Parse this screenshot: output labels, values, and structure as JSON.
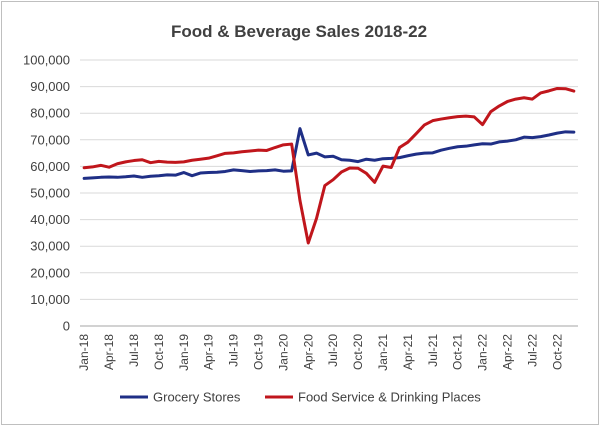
{
  "chart_data": {
    "type": "line",
    "title": "Food & Beverage Sales 2018-22",
    "xlabel": "",
    "ylabel": "",
    "ylim": [
      0,
      100000
    ],
    "yticks": [
      "0",
      "10,000",
      "20,000",
      "30,000",
      "40,000",
      "50,000",
      "60,000",
      "70,000",
      "80,000",
      "90,000",
      "100,000"
    ],
    "grid": true,
    "legend_position": "bottom",
    "x_tick_labels": [
      "Jan-18",
      "Apr-18",
      "Jul-18",
      "Oct-18",
      "Jan-19",
      "Apr-19",
      "Jul-19",
      "Oct-19",
      "Jan-20",
      "Apr-20",
      "Jul-20",
      "Oct-20",
      "Jan-21",
      "Apr-21",
      "Jul-21",
      "Oct-21",
      "Jan-22",
      "Apr-22",
      "Jul-22",
      "Oct-22"
    ],
    "x": [
      "Jan-18",
      "Feb-18",
      "Mar-18",
      "Apr-18",
      "May-18",
      "Jun-18",
      "Jul-18",
      "Aug-18",
      "Sep-18",
      "Oct-18",
      "Nov-18",
      "Dec-18",
      "Jan-19",
      "Feb-19",
      "Mar-19",
      "Apr-19",
      "May-19",
      "Jun-19",
      "Jul-19",
      "Aug-19",
      "Sep-19",
      "Oct-19",
      "Nov-19",
      "Dec-19",
      "Jan-20",
      "Feb-20",
      "Mar-20",
      "Apr-20",
      "May-20",
      "Jun-20",
      "Jul-20",
      "Aug-20",
      "Sep-20",
      "Oct-20",
      "Nov-20",
      "Dec-20",
      "Jan-21",
      "Feb-21",
      "Mar-21",
      "Apr-21",
      "May-21",
      "Jun-21",
      "Jul-21",
      "Aug-21",
      "Sep-21",
      "Oct-21",
      "Nov-21",
      "Dec-21",
      "Jan-22",
      "Feb-22",
      "Mar-22",
      "Apr-22",
      "May-22",
      "Jun-22",
      "Jul-22",
      "Aug-22",
      "Sep-22",
      "Oct-22",
      "Nov-22",
      "Dec-22"
    ],
    "series": [
      {
        "name": "Grocery Stores",
        "color": "#1f2f86",
        "values": [
          55500,
          55700,
          55900,
          56000,
          55900,
          56100,
          56400,
          55900,
          56300,
          56500,
          56800,
          56700,
          57700,
          56500,
          57500,
          57700,
          57800,
          58100,
          58700,
          58400,
          58100,
          58300,
          58400,
          58700,
          58200,
          58300,
          74200,
          64300,
          65000,
          63600,
          63800,
          62500,
          62300,
          61800,
          62700,
          62300,
          62900,
          63000,
          63300,
          64000,
          64600,
          65000,
          65100,
          66100,
          66800,
          67400,
          67600,
          68100,
          68500,
          68400,
          69200,
          69500,
          70000,
          71000,
          70800,
          71200,
          71800,
          72500,
          73000,
          72900
        ]
      },
      {
        "name": "Food Service & Drinking Places",
        "color": "#c0161c",
        "values": [
          59500,
          59800,
          60400,
          59700,
          61000,
          61700,
          62200,
          62500,
          61400,
          61900,
          61600,
          61500,
          61700,
          62300,
          62700,
          63100,
          64000,
          64900,
          65100,
          65500,
          65800,
          66100,
          66000,
          67100,
          68100,
          68400,
          47200,
          31200,
          40500,
          52800,
          55000,
          57900,
          59400,
          59300,
          57400,
          54000,
          60100,
          59600,
          67100,
          69100,
          72300,
          75600,
          77200,
          77800,
          78300,
          78700,
          78900,
          78600,
          75700,
          80600,
          82700,
          84400,
          85300,
          85800,
          85300,
          87600,
          88400,
          89300,
          89200,
          88300
        ]
      }
    ]
  }
}
